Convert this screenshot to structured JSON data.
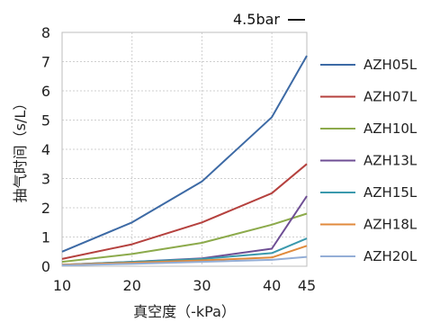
{
  "chart_data": {
    "type": "line",
    "title": "",
    "annotation": "4.5bar",
    "xlabel": "真空度（-kPa）",
    "ylabel": "抽气时间（s/L）",
    "x": [
      10,
      20,
      30,
      40,
      45
    ],
    "x_ticks": [
      "10",
      "20",
      "30",
      "40",
      "45"
    ],
    "y_ticks": [
      "0",
      "1",
      "2",
      "3",
      "4",
      "5",
      "6",
      "7",
      "8"
    ],
    "ylim": [
      0,
      8
    ],
    "grid": true,
    "legend_position": "right",
    "series": [
      {
        "name": "AZH05L",
        "color": "#3d6aa5",
        "values": [
          0.5,
          1.5,
          2.9,
          5.1,
          7.2
        ]
      },
      {
        "name": "AZH07L",
        "color": "#b5413e",
        "values": [
          0.25,
          0.75,
          1.5,
          2.5,
          3.5
        ]
      },
      {
        "name": "AZH10L",
        "color": "#8caa4b",
        "values": [
          0.15,
          0.42,
          0.8,
          1.42,
          1.8
        ]
      },
      {
        "name": "AZH13L",
        "color": "#6e4e94",
        "values": [
          0.05,
          0.15,
          0.27,
          0.6,
          2.4
        ]
      },
      {
        "name": "AZH15L",
        "color": "#3a99ad",
        "values": [
          0.05,
          0.15,
          0.25,
          0.45,
          0.95
        ]
      },
      {
        "name": "AZH18L",
        "color": "#e08a3c",
        "values": [
          0.05,
          0.12,
          0.2,
          0.3,
          0.7
        ]
      },
      {
        "name": "AZH20L",
        "color": "#94aed6",
        "values": [
          0.03,
          0.08,
          0.15,
          0.22,
          0.32
        ]
      }
    ]
  }
}
